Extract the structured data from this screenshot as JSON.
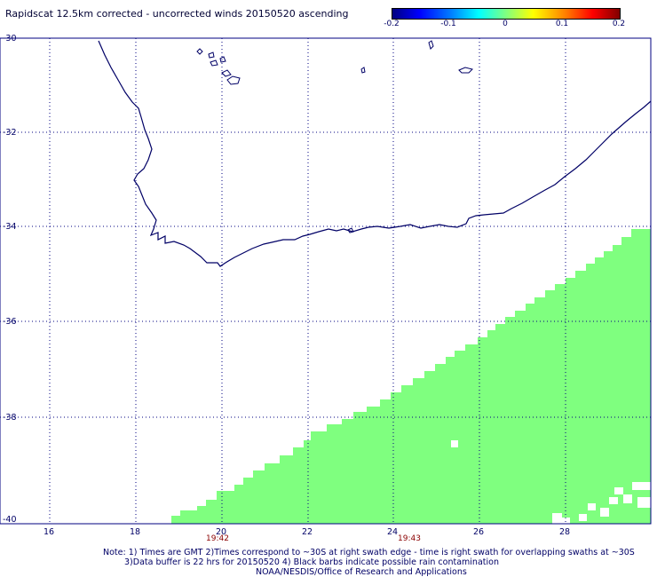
{
  "title": "Rapidscat 12.5km corrected - uncorrected winds 20150520 ascending",
  "colorbar": {
    "labels": [
      "-0.2",
      "-0.1",
      "0",
      "0.1",
      "0.2"
    ],
    "colors": [
      "#000080",
      "#0000ff",
      "#00ffff",
      "#80ff80",
      "#ffff00",
      "#ff0000",
      "#800000"
    ]
  },
  "map": {
    "lat_labels": [
      "-30",
      "-32",
      "-34",
      "-36",
      "-38",
      "-40"
    ],
    "lon_labels": [
      "16",
      "18",
      "20",
      "22",
      "24",
      "26",
      "28"
    ],
    "time_labels": [
      "19:42",
      "19:43"
    ],
    "grid_color": "#000080",
    "coast_color": "#000066",
    "swath_color": "#7fff7f"
  },
  "notes": {
    "line1": "Note: 1) Times are GMT 2)Times correspond to ~30S at right swath edge - time is right swath for overlapping swaths at ~30S",
    "line2": "3)Data buffer is 22 hrs for 20150520 4) Black barbs indicate possible rain contamination",
    "line3": "NOAA/NESDIS/Office of Research and Applications"
  }
}
